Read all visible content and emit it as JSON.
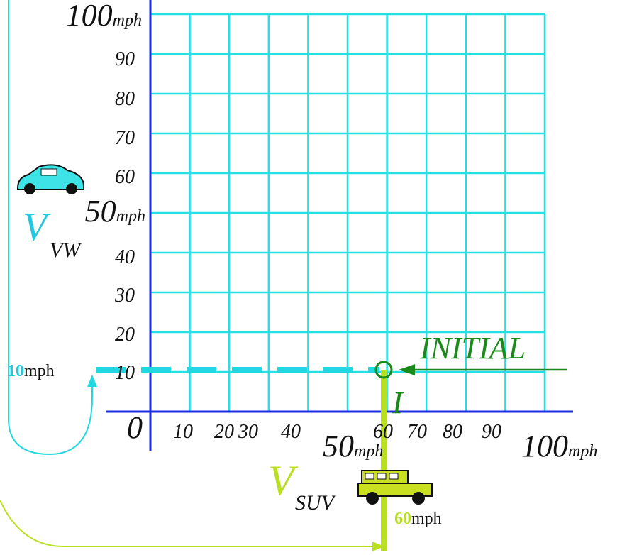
{
  "y_axis": {
    "top": {
      "number": "100",
      "unit": "mph"
    },
    "labels": [
      "90",
      "80",
      "70",
      "60"
    ],
    "mid": {
      "number": "50",
      "unit": "mph"
    },
    "labels_low": [
      "40",
      "30",
      "20",
      "10"
    ]
  },
  "x_axis": {
    "origin": "0",
    "labels": [
      "10",
      "20",
      "30",
      "40"
    ],
    "mid": {
      "number": "50",
      "unit": "mph"
    },
    "labels_high": [
      "60",
      "70",
      "80",
      "90"
    ],
    "end": {
      "number": "100",
      "unit": "mph"
    }
  },
  "vw": {
    "symbol": "V",
    "subscript": "VW",
    "speed": "10",
    "unit": "mph"
  },
  "suv": {
    "symbol": "V",
    "subscript": "SUV",
    "speed": "60",
    "unit": "mph"
  },
  "initial": {
    "label": "INITIAL",
    "point": "I"
  }
}
